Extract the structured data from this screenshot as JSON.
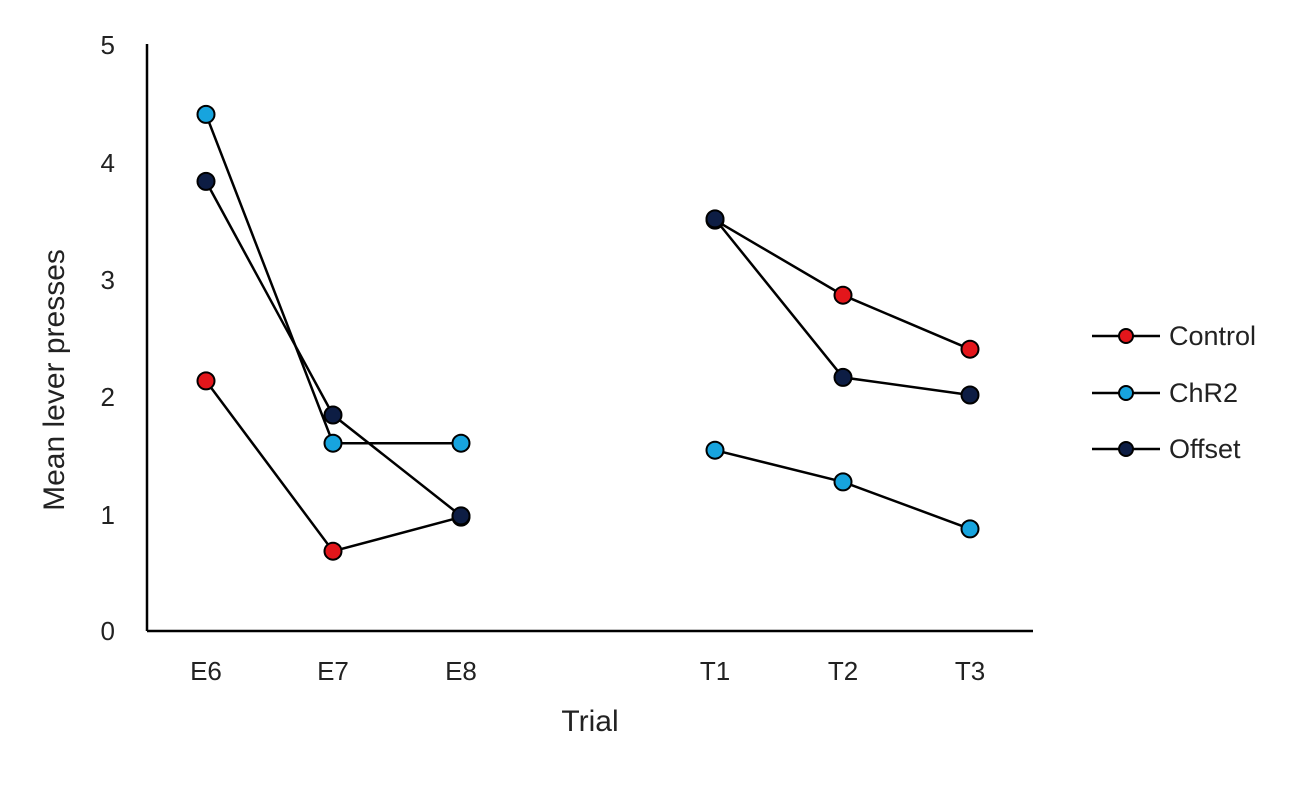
{
  "chart_data": {
    "type": "line",
    "title": "",
    "xlabel": "Trial",
    "ylabel": "Mean lever presses",
    "ylim": [
      0,
      5
    ],
    "yticks": [
      "0",
      "1",
      "2",
      "3",
      "4",
      "5"
    ],
    "categories": [
      "E6",
      "E7",
      "E8",
      "T1",
      "T2",
      "T3"
    ],
    "segments": [
      [
        "E6",
        "E7",
        "E8"
      ],
      [
        "T1",
        "T2",
        "T3"
      ]
    ],
    "grid": false,
    "legend_position": "right",
    "series": [
      {
        "name": "Control",
        "color": "#e3161b",
        "values": [
          2.13,
          0.68,
          0.97,
          3.5,
          2.86,
          2.4
        ]
      },
      {
        "name": "ChR2",
        "color": "#17a4de",
        "values": [
          4.4,
          1.6,
          1.6,
          1.54,
          1.27,
          0.87
        ]
      },
      {
        "name": "Offset",
        "color": "#0d1d44",
        "values": [
          3.83,
          1.84,
          0.98,
          3.51,
          2.16,
          2.01
        ]
      }
    ]
  }
}
